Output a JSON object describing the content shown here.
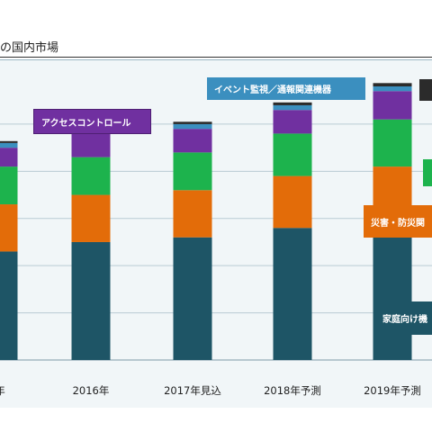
{
  "title": "の国内市場",
  "colors": {
    "residential": "#1e5566",
    "disaster": "#e36c09",
    "green": "#1db34d",
    "access": "#7030a0",
    "event": "#3b8fbf",
    "top": "#2b2b2b",
    "panel": "#f1f6f8",
    "gridline": "#b9cbd4"
  },
  "callouts": {
    "event": "イベント監視／通報関連機器",
    "access": "アクセスコントロール",
    "disaster": "災害・防災関",
    "residential": "家庭向け機"
  },
  "chart_data": {
    "type": "bar",
    "stacked": true,
    "categories": [
      "年",
      "2016年",
      "2017年見込",
      "2018年予測",
      "2019年予測"
    ],
    "series": [
      {
        "name": "家庭向け機",
        "values": [
          23,
          25,
          26,
          28,
          30
        ]
      },
      {
        "name": "災害・防災関",
        "values": [
          10,
          10,
          10,
          11,
          11
        ]
      },
      {
        "name": "",
        "values": [
          8,
          8,
          8,
          9,
          10
        ]
      },
      {
        "name": "アクセスコントロール",
        "values": [
          4,
          5,
          5,
          5,
          6
        ]
      },
      {
        "name": "イベント監視／通報関連機器",
        "values": [
          1,
          1,
          1,
          1,
          1
        ]
      },
      {
        "name": "",
        "values": [
          0.4,
          0.4,
          0.5,
          0.6,
          0.7
        ]
      }
    ],
    "title": "の国内市場",
    "xlabel": "",
    "ylabel": "",
    "ylim": [
      0,
      58
    ],
    "grid": true,
    "legend": "callouts"
  }
}
